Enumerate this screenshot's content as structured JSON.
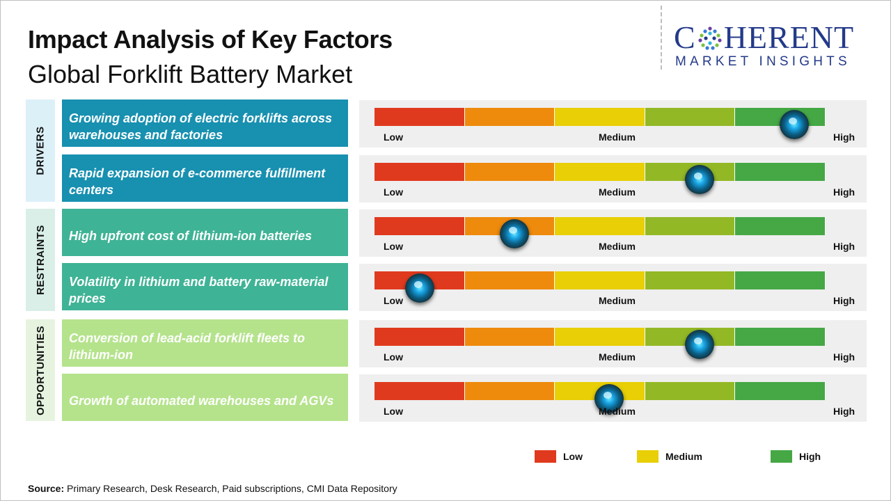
{
  "header": {
    "title": "Impact Analysis of Key Factors",
    "subtitle": "Global Forklift Battery Market"
  },
  "logo": {
    "text_c": "C",
    "text_rest": "HERENT",
    "tagline": "MARKET INSIGHTS",
    "color": "#243a8a"
  },
  "scale_labels": {
    "low": "Low",
    "medium": "Medium",
    "high": "High"
  },
  "colors": {
    "segments": [
      "#e03a1e",
      "#ee8a0c",
      "#e8cf06",
      "#93b826",
      "#45a845"
    ],
    "drivers": "#1890b0",
    "restraints": "#3fb395",
    "opportunities": "#b5e38c"
  },
  "chart_data": {
    "type": "gauge",
    "title": "Impact Analysis of Key Factors",
    "subtitle": "Global Forklift Battery Market",
    "scale": {
      "min": 0,
      "max": 1,
      "labels": [
        "Low",
        "Medium",
        "High"
      ]
    },
    "categories": [
      {
        "name": "DRIVERS",
        "factors": [
          {
            "label": "Growing adoption of electric forklifts across warehouses and factories",
            "value": 0.93
          },
          {
            "label": "Rapid expansion of e-commerce fulfillment centers",
            "value": 0.72
          }
        ]
      },
      {
        "name": "RESTRAINTS",
        "factors": [
          {
            "label": "High upfront cost of lithium-ion batteries",
            "value": 0.31
          },
          {
            "label": "Volatility in lithium and battery raw-material prices",
            "value": 0.1
          }
        ]
      },
      {
        "name": "OPPORTUNITIES",
        "factors": [
          {
            "label": "Conversion of lead-acid forklift fleets to lithium-ion",
            "value": 0.72
          },
          {
            "label": "Growth of automated warehouses and AGVs",
            "value": 0.52
          }
        ]
      }
    ],
    "legend": [
      {
        "label": "Low",
        "color": "#e03a1e"
      },
      {
        "label": "Medium",
        "color": "#e8cf06"
      },
      {
        "label": "High",
        "color": "#45a845"
      }
    ]
  },
  "source": {
    "prefix": "Source:",
    "text": "Primary Research, Desk Research, Paid subscriptions, CMI Data Repository"
  }
}
